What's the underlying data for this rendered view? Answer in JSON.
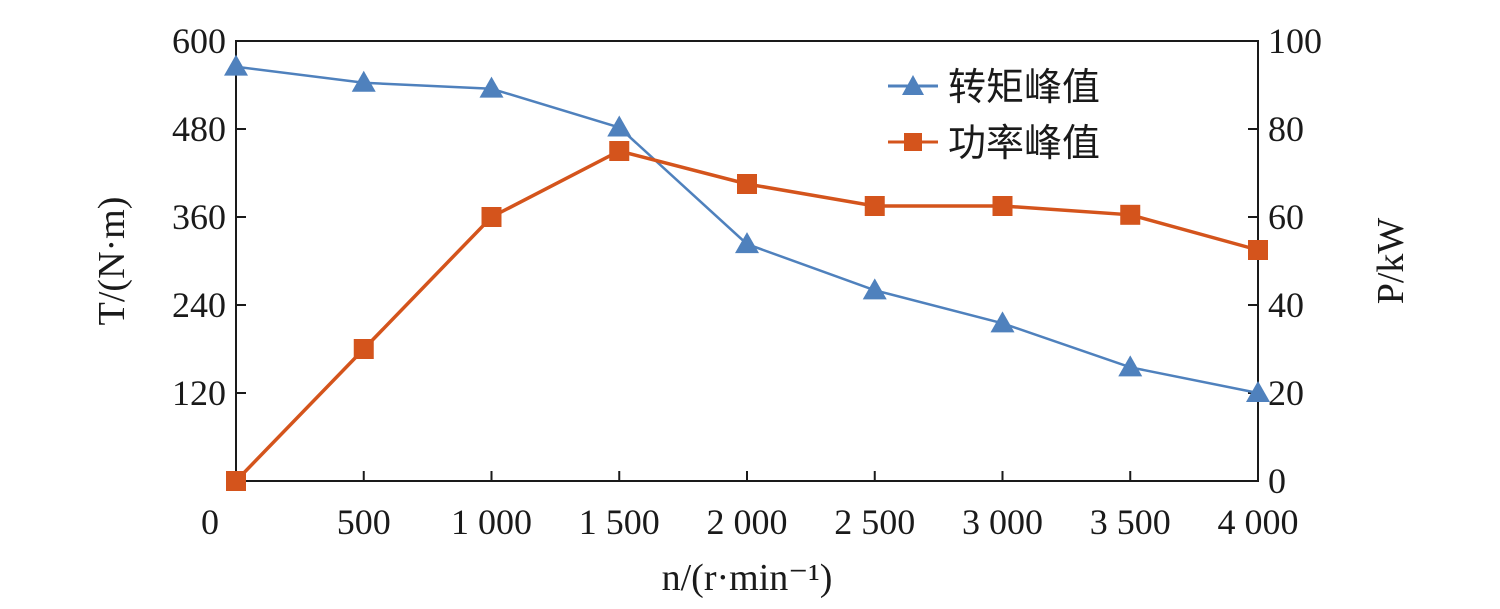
{
  "chart_data": {
    "type": "line",
    "x": [
      0,
      500,
      1000,
      1500,
      2000,
      2500,
      3000,
      3500,
      4000
    ],
    "x_tick_labels": [
      "0",
      "500",
      "1 000",
      "1 500",
      "2 000",
      "2 500",
      "3 000",
      "3 500",
      "4 000"
    ],
    "xlim": [
      0,
      4000
    ],
    "xlabel": "n/(r·min⁻¹)",
    "ylabel_left": "T/(N·m)",
    "ylim_left": [
      0,
      600
    ],
    "y_ticks_left": [
      "120",
      "240",
      "360",
      "480",
      "600"
    ],
    "y_tick_values_left": [
      120,
      240,
      360,
      480,
      600
    ],
    "ylabel_right": "P/kW",
    "ylim_right": [
      0,
      100
    ],
    "y_ticks_right": [
      "0",
      "20",
      "40",
      "60",
      "80",
      "100"
    ],
    "y_tick_values_right": [
      0,
      20,
      40,
      60,
      80,
      100
    ],
    "grid": false,
    "legend_position": "top-right",
    "series": [
      {
        "name": "转矩峰值",
        "axis": "left",
        "marker": "triangle",
        "color": "#4f81bd",
        "values": [
          565,
          543,
          535,
          482,
          323,
          260,
          215,
          155,
          120
        ]
      },
      {
        "name": "功率峰值",
        "axis": "right",
        "marker": "square",
        "color": "#d4541c",
        "values": [
          0,
          30,
          60,
          75,
          67.5,
          62.5,
          62.5,
          60.5,
          52.5
        ]
      }
    ]
  }
}
